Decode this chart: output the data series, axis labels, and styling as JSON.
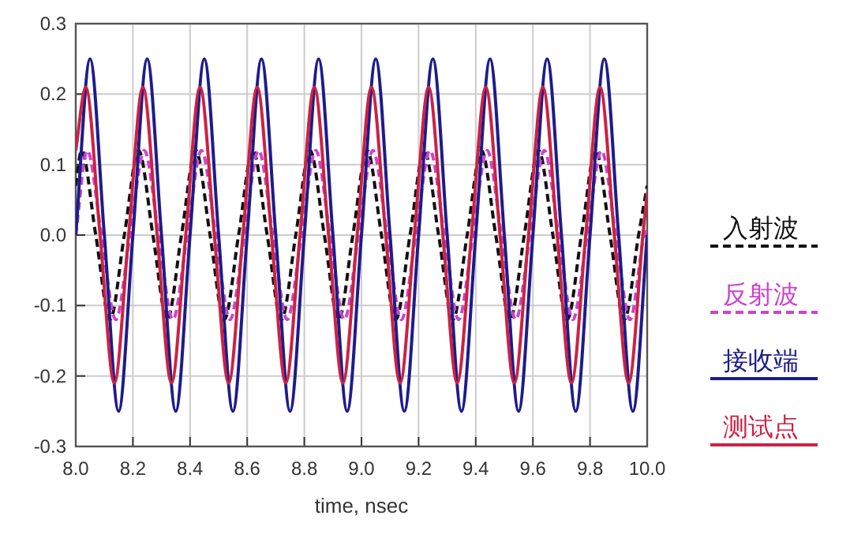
{
  "chart_data": {
    "type": "line",
    "xlabel": "time, nsec",
    "xlim": [
      8.0,
      10.0
    ],
    "ylim": [
      -0.3,
      0.3
    ],
    "xticks": [
      {
        "value": 8.0,
        "label": "8.0"
      },
      {
        "value": 8.2,
        "label": "8.2"
      },
      {
        "value": 8.4,
        "label": "8.4"
      },
      {
        "value": 8.6,
        "label": "8.6"
      },
      {
        "value": 8.8,
        "label": "8.8"
      },
      {
        "value": 9.0,
        "label": "9.0"
      },
      {
        "value": 9.2,
        "label": "9.2"
      },
      {
        "value": 9.4,
        "label": "9.4"
      },
      {
        "value": 9.6,
        "label": "9.6"
      },
      {
        "value": 9.8,
        "label": "9.8"
      },
      {
        "value": 10.0,
        "label": "10.0"
      }
    ],
    "yticks": [
      {
        "value": -0.3,
        "label": "-0.3"
      },
      {
        "value": -0.2,
        "label": "-0.2"
      },
      {
        "value": -0.1,
        "label": "-0.1"
      },
      {
        "value": 0,
        "label": "0.0"
      },
      {
        "value": 0.1,
        "label": "0.1"
      },
      {
        "value": 0.2,
        "label": "0.2"
      },
      {
        "value": 0.3,
        "label": "0.3"
      }
    ],
    "grid": true,
    "legend": "right",
    "series": [
      {
        "name": "入射波",
        "color": "#111111",
        "line_style": "dashed",
        "x": [
          8.0,
          8.02,
          8.07,
          8.12,
          8.17,
          8.22,
          8.27,
          8.32,
          8.37,
          8.42,
          8.47,
          8.52,
          8.57,
          8.62,
          8.67,
          8.72,
          8.77,
          8.82,
          8.87,
          8.92,
          8.97,
          9.02,
          9.07,
          9.12,
          9.17,
          9.22,
          9.27,
          9.32,
          9.37,
          9.42,
          9.47,
          9.52,
          9.57,
          9.62,
          9.67,
          9.72,
          9.77,
          9.82,
          9.87,
          9.92,
          9.97,
          10.0
        ],
        "values": [
          0.07,
          0.12,
          0,
          -0.12,
          0,
          0.12,
          0,
          -0.12,
          0,
          0.12,
          0,
          -0.12,
          0,
          0.12,
          0,
          -0.12,
          0,
          0.12,
          0,
          -0.12,
          0,
          0.12,
          0,
          -0.12,
          0,
          0.12,
          0,
          -0.12,
          0,
          0.12,
          0,
          -0.12,
          0,
          0.12,
          0,
          -0.12,
          0,
          0.12,
          0,
          -0.12,
          0,
          0.07
        ]
      },
      {
        "name": "反射波",
        "color": "#cc44cc",
        "line_style": "dashed",
        "x": [
          8.0,
          8.04,
          8.09,
          8.14,
          8.19,
          8.24,
          8.29,
          8.34,
          8.39,
          8.44,
          8.49,
          8.54,
          8.59,
          8.64,
          8.69,
          8.74,
          8.79,
          8.84,
          8.89,
          8.94,
          8.99,
          9.04,
          9.09,
          9.14,
          9.19,
          9.24,
          9.29,
          9.34,
          9.39,
          9.44,
          9.49,
          9.54,
          9.59,
          9.64,
          9.69,
          9.74,
          9.79,
          9.84,
          9.89,
          9.94,
          9.99,
          10.0
        ],
        "values": [
          0,
          0.12,
          0,
          -0.12,
          0,
          0.12,
          0,
          -0.12,
          0,
          0.12,
          0,
          -0.12,
          0,
          0.12,
          0,
          -0.12,
          0,
          0.12,
          0,
          -0.12,
          0,
          0.12,
          0,
          -0.12,
          0,
          0.12,
          0,
          -0.12,
          0,
          0.12,
          0,
          -0.12,
          0,
          0.12,
          0,
          -0.12,
          0,
          0.12,
          0,
          -0.12,
          0,
          0.01
        ]
      },
      {
        "name": "接收端",
        "color": "#1c1c8c",
        "line_style": "solid",
        "x": [
          8.0,
          8.05,
          8.1,
          8.15,
          8.2,
          8.25,
          8.3,
          8.35,
          8.4,
          8.45,
          8.5,
          8.55,
          8.6,
          8.65,
          8.7,
          8.75,
          8.8,
          8.85,
          8.9,
          8.95,
          9.0,
          9.05,
          9.1,
          9.15,
          9.2,
          9.25,
          9.3,
          9.35,
          9.4,
          9.45,
          9.5,
          9.55,
          9.6,
          9.65,
          9.7,
          9.75,
          9.8,
          9.85,
          9.9,
          9.95,
          10.0
        ],
        "values": [
          0,
          0.25,
          0,
          -0.25,
          0,
          0.25,
          0,
          -0.25,
          0,
          0.25,
          0,
          -0.25,
          0,
          0.25,
          0,
          -0.25,
          0,
          0.25,
          0,
          -0.25,
          0,
          0.25,
          0,
          -0.25,
          0,
          0.25,
          0,
          -0.25,
          0,
          0.25,
          0,
          -0.25,
          0,
          0.25,
          0,
          -0.25,
          0,
          0.25,
          0,
          -0.25,
          0
        ]
      },
      {
        "name": "测试点",
        "color": "#cc2244",
        "line_style": "solid",
        "x": [
          8.0,
          8.035,
          8.085,
          8.135,
          8.185,
          8.235,
          8.285,
          8.335,
          8.385,
          8.435,
          8.485,
          8.535,
          8.585,
          8.635,
          8.685,
          8.735,
          8.785,
          8.835,
          8.885,
          8.935,
          8.985,
          9.035,
          9.085,
          9.135,
          9.185,
          9.235,
          9.285,
          9.335,
          9.385,
          9.435,
          9.485,
          9.535,
          9.585,
          9.635,
          9.685,
          9.735,
          9.785,
          9.835,
          9.885,
          9.935,
          9.985,
          10.0
        ],
        "values": [
          0.12,
          0.21,
          0,
          -0.21,
          0,
          0.21,
          0,
          -0.21,
          0,
          0.21,
          0,
          -0.21,
          0,
          0.21,
          0,
          -0.21,
          0,
          0.21,
          0,
          -0.21,
          0,
          0.21,
          0,
          -0.21,
          0,
          0.21,
          0,
          -0.21,
          0,
          0.21,
          0,
          -0.21,
          0,
          0.21,
          0,
          -0.21,
          0,
          0.21,
          0,
          -0.21,
          0,
          0.06
        ]
      }
    ]
  }
}
